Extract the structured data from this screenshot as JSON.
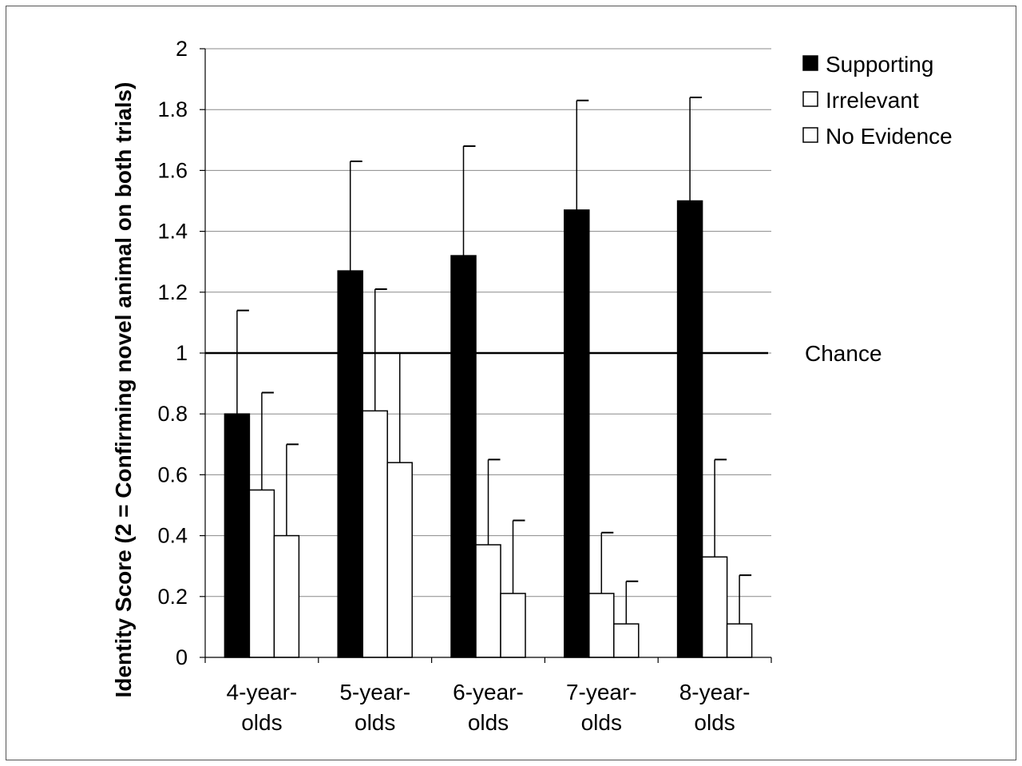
{
  "chart_data": {
    "type": "bar",
    "title": "",
    "xlabel": "",
    "ylabel": "Identity Score (2 = Confirming novel animal on both trials)",
    "ylim": [
      0,
      2
    ],
    "yticks": [
      "0",
      "0.2",
      "0.4",
      "0.6",
      "0.8",
      "1",
      "1.2",
      "1.4",
      "1.6",
      "1.8",
      "2"
    ],
    "categories": [
      [
        "4-year-",
        "olds"
      ],
      [
        "5-year-",
        "olds"
      ],
      [
        "6-year-",
        "olds"
      ],
      [
        "7-year-",
        "olds"
      ],
      [
        "8-year-",
        "olds"
      ]
    ],
    "series": [
      {
        "name": "Supporting",
        "color": "#000000",
        "values": [
          0.8,
          1.27,
          1.32,
          1.47,
          1.5
        ],
        "error_upper": [
          1.14,
          1.63,
          1.68,
          1.83,
          1.84
        ]
      },
      {
        "name": "Irrelevant",
        "color": "#ffffff",
        "values": [
          0.55,
          0.81,
          0.37,
          0.21,
          0.33
        ],
        "error_upper": [
          0.87,
          1.21,
          0.65,
          0.41,
          0.65
        ]
      },
      {
        "name": "No Evidence",
        "color": "#ffffff",
        "values": [
          0.4,
          0.64,
          0.21,
          0.11,
          0.11
        ],
        "error_upper": [
          0.7,
          1.0,
          0.45,
          0.25,
          0.27
        ]
      }
    ],
    "reference_line": {
      "value": 1,
      "label": "Chance"
    },
    "grid": true,
    "legend_position": "top-right"
  }
}
